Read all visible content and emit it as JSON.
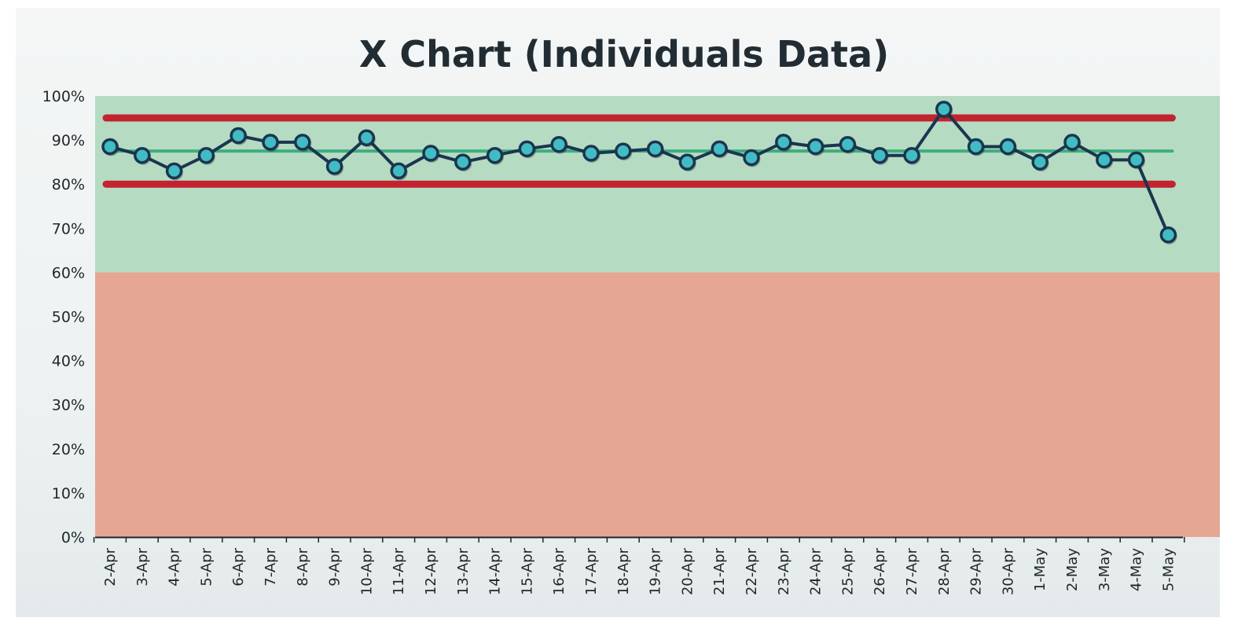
{
  "chart_data": {
    "type": "line",
    "title": "X Chart (Individuals Data)",
    "xlabel": "",
    "ylabel": "",
    "categories": [
      "2-Apr",
      "3-Apr",
      "4-Apr",
      "5-Apr",
      "6-Apr",
      "7-Apr",
      "8-Apr",
      "9-Apr",
      "10-Apr",
      "11-Apr",
      "12-Apr",
      "13-Apr",
      "14-Apr",
      "15-Apr",
      "16-Apr",
      "17-Apr",
      "18-Apr",
      "19-Apr",
      "20-Apr",
      "21-Apr",
      "22-Apr",
      "23-Apr",
      "24-Apr",
      "25-Apr",
      "26-Apr",
      "27-Apr",
      "28-Apr",
      "29-Apr",
      "30-Apr",
      "1-May",
      "2-May",
      "3-May",
      "4-May",
      "5-May"
    ],
    "series": [
      {
        "values": [
          88.5,
          86.5,
          83,
          86.5,
          91,
          89.5,
          89.5,
          84,
          90.5,
          83,
          87,
          85,
          86.5,
          88,
          89,
          87,
          87.5,
          88,
          85,
          88,
          86,
          89.5,
          88.5,
          89,
          86.5,
          86.5,
          97,
          88.5,
          88.5,
          85,
          89.5,
          85.5,
          85.5,
          68.5
        ]
      }
    ],
    "reference_lines": {
      "upper_limit": 95,
      "center_line": 87.5,
      "lower_limit": 80
    },
    "bands": {
      "green_band": [
        60,
        100
      ],
      "red_band": [
        0,
        60
      ]
    },
    "ylim": [
      0,
      100
    ],
    "yticks": [
      "0%",
      "10%",
      "20%",
      "30%",
      "40%",
      "50%",
      "60%",
      "70%",
      "80%",
      "90%",
      "100%"
    ],
    "grid": false,
    "legend": "none",
    "colors": {
      "green_band": "#b5dcc2",
      "red_band": "#e5a794",
      "limit_line": "#c3222f",
      "center_line": "#3dae7f",
      "series_line": "#1b3550",
      "marker_fill": "#42bcc3",
      "marker_stroke": "#1b3550"
    }
  }
}
